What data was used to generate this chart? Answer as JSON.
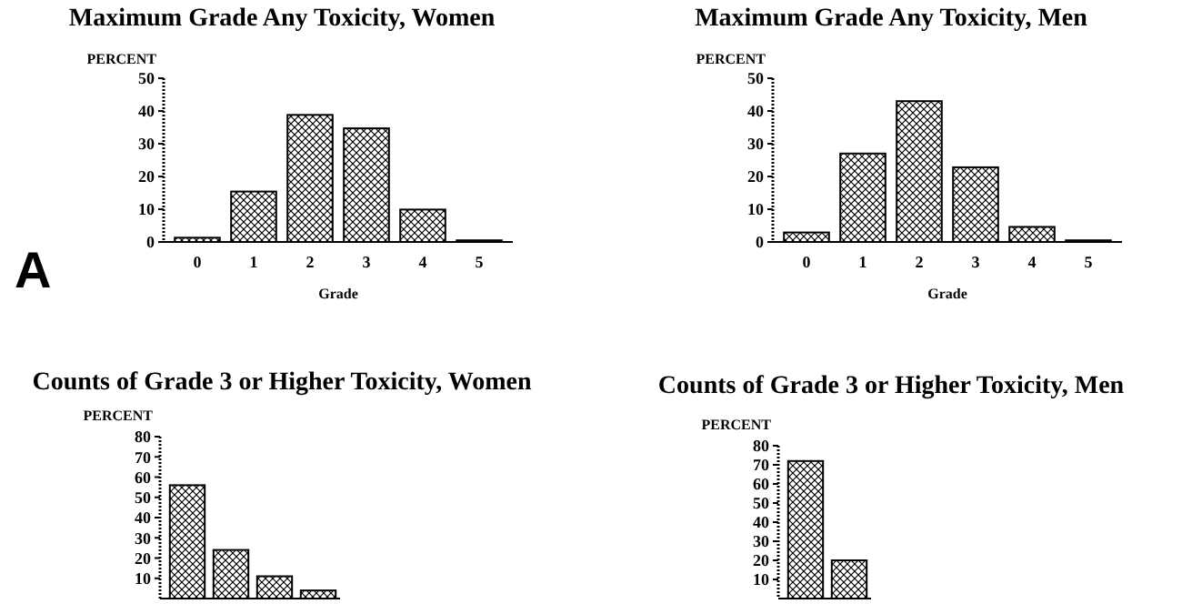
{
  "chart_data": [
    {
      "type": "bar",
      "title": "Maximum Grade Any Toxicity, Women",
      "ylabel": "PERCENT",
      "xlabel": "Grade",
      "categories": [
        "0",
        "1",
        "2",
        "3",
        "4",
        "5"
      ],
      "values": [
        1.3,
        15.4,
        38.8,
        34.7,
        9.9,
        0.5
      ],
      "color": "#000000",
      "ylim": [
        0,
        50
      ],
      "yticks": [
        0,
        10,
        20,
        30,
        40,
        50
      ],
      "annotations": [
        "A"
      ]
    },
    {
      "type": "bar",
      "title": "Maximum Grade Any Toxicity, Men",
      "ylabel": "PERCENT",
      "xlabel": "Grade",
      "categories": [
        "0",
        "1",
        "2",
        "3",
        "4",
        "5"
      ],
      "values": [
        2.9,
        27,
        43,
        22.8,
        4.6,
        0.5
      ],
      "color": "#000000",
      "ylim": [
        0,
        50
      ],
      "yticks": [
        0,
        10,
        20,
        30,
        40,
        50
      ]
    },
    {
      "type": "bar",
      "title": "Counts of Grade 3 or Higher Toxicity, Women",
      "ylabel": "PERCENT",
      "categories": [
        null,
        null,
        null,
        null
      ],
      "values": [
        56,
        24,
        11,
        4
      ],
      "color": "#000000",
      "ylim": [
        0,
        80
      ],
      "yticks": [
        10,
        20,
        30,
        40,
        50,
        60,
        70,
        80
      ],
      "tick_labels": "y"
    },
    {
      "type": "bar",
      "title": "Counts of Grade 3 or Higher Toxicity, Men",
      "ylabel": "PERCENT",
      "categories": [
        null,
        null
      ],
      "values": [
        72,
        20
      ],
      "color": "#000000",
      "ylim": [
        0,
        80
      ],
      "yticks": [
        10,
        20,
        30,
        40,
        50,
        60,
        70,
        80
      ],
      "tick_labels": "y"
    }
  ]
}
